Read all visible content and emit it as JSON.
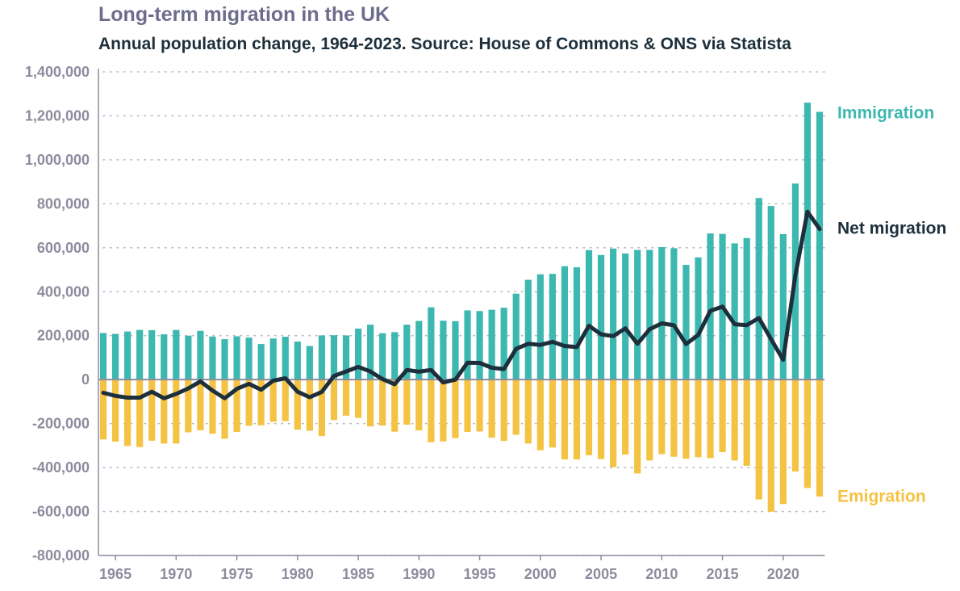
{
  "title": "Long-term migration in the UK",
  "subtitle": "Annual population change, 1964-2023. Source: House of Commons & ONS via Statista",
  "colors": {
    "immigration": "#3db8b0",
    "emigration": "#f5c343",
    "net": "#1c2f3b",
    "grid": "#b8b8c4",
    "axis": "#8e8c9e",
    "title": "#6e6c8c"
  },
  "chart_data": {
    "type": "bar",
    "x": [
      1964,
      1965,
      1966,
      1967,
      1968,
      1969,
      1970,
      1971,
      1972,
      1973,
      1974,
      1975,
      1976,
      1977,
      1978,
      1979,
      1980,
      1981,
      1982,
      1983,
      1984,
      1985,
      1986,
      1987,
      1988,
      1989,
      1990,
      1991,
      1992,
      1993,
      1994,
      1995,
      1996,
      1997,
      1998,
      1999,
      2000,
      2001,
      2002,
      2003,
      2004,
      2005,
      2006,
      2007,
      2008,
      2009,
      2010,
      2011,
      2012,
      2013,
      2014,
      2015,
      2016,
      2017,
      2018,
      2019,
      2020,
      2021,
      2022,
      2023
    ],
    "series": [
      {
        "name": "Immigration",
        "kind": "bar",
        "values": [
          212000,
          208000,
          219000,
          226000,
          225000,
          206000,
          226000,
          200000,
          222000,
          196000,
          184000,
          197000,
          191000,
          162000,
          187000,
          195000,
          173000,
          153000,
          201000,
          202000,
          201000,
          232000,
          250000,
          211000,
          216000,
          250000,
          267000,
          329000,
          268000,
          266000,
          315000,
          312000,
          318000,
          327000,
          391000,
          454000,
          479000,
          481000,
          516000,
          511000,
          589000,
          567000,
          596000,
          574000,
          590000,
          590000,
          603000,
          598000,
          522000,
          556000,
          665000,
          663000,
          620000,
          644000,
          826000,
          790000,
          662000,
          892000,
          1260000,
          1218000
        ]
      },
      {
        "name": "Emigration",
        "kind": "bar",
        "values": [
          -272000,
          -282000,
          -302000,
          -307000,
          -278000,
          -291000,
          -291000,
          -240000,
          -230000,
          -246000,
          -269000,
          -238000,
          -210000,
          -208000,
          -192000,
          -189000,
          -228000,
          -233000,
          -257000,
          -184000,
          -164000,
          -174000,
          -213000,
          -209000,
          -237000,
          -205000,
          -231000,
          -285000,
          -281000,
          -266000,
          -238000,
          -236000,
          -264000,
          -279000,
          -251000,
          -291000,
          -321000,
          -309000,
          -363000,
          -363000,
          -344000,
          -361000,
          -398000,
          -341000,
          -427000,
          -368000,
          -339000,
          -351000,
          -360000,
          -353000,
          -357000,
          -330000,
          -368000,
          -392000,
          -545000,
          -601000,
          -566000,
          -418000,
          -493000,
          -532000
        ]
      },
      {
        "name": "Net migration",
        "kind": "line",
        "values": [
          -60000,
          -74000,
          -82000,
          -82000,
          -55000,
          -85000,
          -65000,
          -40000,
          -8000,
          -50000,
          -85000,
          -42000,
          -19000,
          -46000,
          -5000,
          6000,
          -55000,
          -80000,
          -56000,
          17000,
          37000,
          58000,
          37000,
          2000,
          -21000,
          44000,
          36000,
          44000,
          -13000,
          0,
          77000,
          76000,
          54000,
          48000,
          140000,
          163000,
          158000,
          172000,
          153000,
          148000,
          245000,
          206000,
          198000,
          233000,
          163000,
          229000,
          256000,
          247000,
          162000,
          203000,
          313000,
          332000,
          252000,
          248000,
          280000,
          184000,
          90000,
          474000,
          764000,
          685000
        ]
      }
    ],
    "xlim": [
      1963.6,
      2023.4
    ],
    "ylim": [
      -800000,
      1400000
    ],
    "xticks": [
      "1965",
      "1970",
      "1975",
      "1980",
      "1985",
      "1990",
      "1995",
      "2000",
      "2005",
      "2010",
      "2015",
      "2020"
    ],
    "yticks": [
      "1,400,000",
      "1,200,000",
      "1,000,000",
      "800,000",
      "600,000",
      "400,000",
      "200,000",
      "0",
      "-200,000",
      "-400,000",
      "-600,000",
      "-800,000"
    ],
    "ytick_values": [
      1400000,
      1200000,
      1000000,
      800000,
      600000,
      400000,
      200000,
      0,
      -200000,
      -400000,
      -600000,
      -800000
    ],
    "grid": "horizontal-dotted",
    "labels": {
      "immigration": "Immigration",
      "net": "Net migration",
      "emigration": "Emigration"
    }
  }
}
